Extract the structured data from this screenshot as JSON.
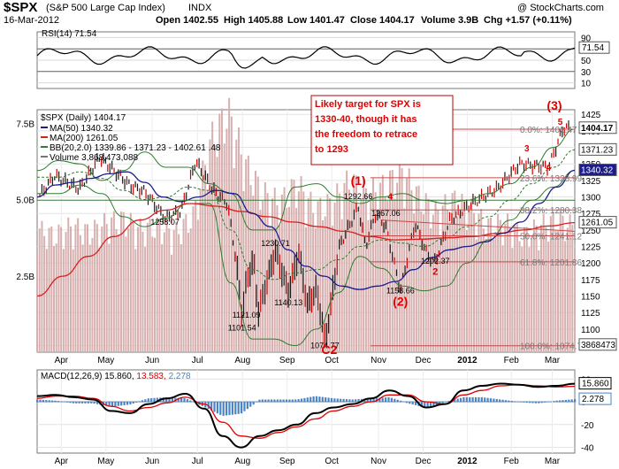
{
  "header": {
    "symbol": "$SPX",
    "name": "(S&P 500 Large Cap Index)",
    "exchange": "INDX",
    "watermark": "@ StockCharts.com",
    "date": "16-Mar-2012",
    "open": "Open 1402.55",
    "high": "High 1405.88",
    "low": "Low 1401.47",
    "close": "Close 1404.17",
    "volume": "Volume 3.9B",
    "change": "Chg +1.57 (+0.11%)"
  },
  "colors": {
    "price_bar_up": "#1a1a1a",
    "price_bar_down": "#d00000",
    "ma50": "#1c1c8c",
    "ma200": "#d42020",
    "bollinger": "#2f7d2f",
    "volume_bar": "#d8b0b0",
    "macd": "#000000",
    "signal": "#e00000",
    "histogram": "#4a84c4",
    "annotation_red": "#e00000",
    "fib_line": "#c84a4a"
  },
  "chart_data": [
    {
      "type": "line",
      "panel": "RSI",
      "title": "RSI(14) 71.54",
      "y_ticks": [
        10,
        30,
        50,
        70,
        90
      ],
      "ylim": [
        0,
        100
      ],
      "overbought": 70,
      "oversold": 30,
      "last_value_label": "71.54",
      "series": [
        {
          "name": "RSI(14)",
          "x": [
            "2012-03-16"
          ],
          "values": [
            71.54
          ]
        }
      ]
    },
    {
      "type": "line",
      "panel": "price",
      "title": "$SPX (Daily) 1404.17",
      "legend": [
        "MA(50) 1340.32",
        "MA(200) 1261.05",
        "BB(20,2.0) 1339.86 - 1371.23 - 1402.61 .48",
        "Volume 3,868,473,088"
      ],
      "x_ticks": [
        "Apr",
        "May",
        "Jun",
        "Jul",
        "Aug",
        "Sep",
        "Oct",
        "Nov",
        "Dec",
        "2012",
        "Feb",
        "Mar"
      ],
      "y_ticks": [
        1075,
        1100,
        1125,
        1150,
        1175,
        1200,
        1225,
        1250,
        1275,
        1300,
        1325,
        1350,
        1375,
        1400,
        1425
      ],
      "ylim": [
        1065,
        1432
      ],
      "volume_ticks": [
        "7.5B",
        "5.0B",
        "2.5B"
      ],
      "series": [
        {
          "name": "Price",
          "x": [
            "2011-03-21",
            "2011-04-01",
            "2011-04-18",
            "2011-05-02",
            "2011-05-23",
            "2011-06-02",
            "2011-06-16",
            "2011-06-27",
            "2011-07-07",
            "2011-07-19",
            "2011-07-29",
            "2011-08-04",
            "2011-08-08",
            "2011-08-11",
            "2011-08-16",
            "2011-08-19",
            "2011-08-31",
            "2011-09-09",
            "2011-09-16",
            "2011-09-22",
            "2011-09-28",
            "2011-10-03",
            "2011-10-04",
            "2011-10-14",
            "2011-10-27",
            "2011-11-01",
            "2011-11-08",
            "2011-11-15",
            "2011-11-25",
            "2011-12-05",
            "2011-12-14",
            "2011-12-19",
            "2011-12-29",
            "2012-01-13",
            "2012-01-31",
            "2012-02-15",
            "2012-03-06",
            "2012-03-16"
          ],
          "values": [
            1300,
            1332,
            1312,
            1360,
            1317,
            1308,
            1268,
            1278,
            1354,
            1310,
            1290,
            1203,
            1119,
            1172,
            1205,
            1124,
            1218,
            1155,
            1216,
            1136,
            1160,
            1102,
            1075,
            1225,
            1285,
            1225,
            1275,
            1255,
            1158,
            1260,
            1210,
            1202,
            1265,
            1290,
            1313,
            1350,
            1345,
            1404.17
          ]
        },
        {
          "name": "MA(50)",
          "values": [
            1300,
            1318,
            1322,
            1328,
            1335,
            1338,
            1322,
            1300,
            1293,
            1300,
            1310,
            1305,
            1275,
            1255,
            1220,
            1195,
            1180,
            1165,
            1160,
            1165,
            1172,
            1190,
            1208,
            1220,
            1225,
            1232,
            1245,
            1262,
            1290,
            1315,
            1340.32
          ]
        },
        {
          "name": "MA(200)",
          "values": [
            1150,
            1180,
            1210,
            1240,
            1265,
            1280,
            1290,
            1286,
            1278,
            1270,
            1262,
            1255,
            1248,
            1240,
            1235,
            1236,
            1238,
            1240,
            1245,
            1250,
            1256,
            1261.05
          ]
        },
        {
          "name": "BB upper",
          "values": [
            1340,
            1355,
            1350,
            1325,
            1340,
            1368,
            1345,
            1345,
            1320,
            1305,
            1250,
            1250,
            1315,
            1320,
            1300,
            1290,
            1300,
            1305,
            1295,
            1290,
            1295,
            1305,
            1320,
            1345,
            1375,
            1402.61
          ]
        },
        {
          "name": "BB middle",
          "values": [
            1330,
            1330,
            1338,
            1328,
            1310,
            1296,
            1300,
            1315,
            1310,
            1250,
            1190,
            1175,
            1185,
            1190,
            1205,
            1225,
            1235,
            1230,
            1225,
            1238,
            1255,
            1270,
            1295,
            1320,
            1345,
            1371.23
          ]
        },
        {
          "name": "BB lower",
          "values": [
            1305,
            1305,
            1318,
            1305,
            1270,
            1255,
            1268,
            1290,
            1290,
            1170,
            1085,
            1085,
            1075,
            1100,
            1155,
            1210,
            1192,
            1165,
            1158,
            1165,
            1200,
            1235,
            1265,
            1295,
            1315,
            1339.86
          ]
        },
        {
          "name": "Volume",
          "values_billions": [
            3.8,
            3.6,
            3.9,
            3.7,
            4.0,
            4.1,
            3.8,
            3.9,
            3.7,
            4.2,
            6.5,
            7.4,
            5.8,
            4.9,
            4.6,
            5.2,
            4.4,
            4.6,
            5.3,
            4.9,
            5.1,
            5.6,
            4.8,
            4.3,
            4.7,
            4.4,
            3.9,
            4.0,
            3.6,
            3.9,
            4.1,
            3.868
          ]
        }
      ],
      "value_labels": [
        "1292.66",
        "1258.07",
        "1230.71",
        "1121.09",
        "1140.13",
        "1101.54",
        "1074.77",
        "1267.06",
        "1202.37",
        "1158.66"
      ],
      "axis_labels": [
        "1404.17",
        "1371.23",
        "1340.32",
        "1261.05",
        "3868473"
      ],
      "fib_levels": [
        {
          "label": "0.0%: 1402.47",
          "value": 1402.47
        },
        {
          "label": "23.6%: 1328.99",
          "value": 1328.99
        },
        {
          "label": "38.2%: 1280.38",
          "value": 1280.38
        },
        {
          "label": "50.0%: 1241.12",
          "value": 1241.12
        },
        {
          "label": "61.8%: 1201.86",
          "value": 1201.86
        },
        {
          "label": "100.0%: 1074.77",
          "value": 1074.77
        }
      ],
      "wave_labels": [
        "(1)",
        "(2)",
        "(3)",
        "C2",
        "2",
        "4",
        "3",
        "4",
        "5"
      ],
      "note": "Likely target for SPX is 1330-40, though it has the freedom to retrace to 1293"
    },
    {
      "type": "line",
      "panel": "MACD",
      "title": "MACD(12,26,9) 15.860, 13.583, 2.278",
      "title_parts": [
        "MACD(12,26,9)",
        "15.860",
        "13.583",
        "2.278"
      ],
      "y_ticks": [
        -40,
        -20,
        0,
        20
      ],
      "ylim": [
        -45,
        28
      ],
      "last_value_labels": [
        "15.860",
        "2.278"
      ],
      "x_ticks": [
        "Apr",
        "May",
        "Jun",
        "Jul",
        "Aug",
        "Sep",
        "Oct",
        "Nov",
        "Dec",
        "2012",
        "Feb",
        "Mar"
      ],
      "series": [
        {
          "name": "MACD",
          "values": [
            5,
            6,
            4,
            2,
            -8,
            -10,
            -2,
            3,
            7,
            -6,
            -30,
            -40,
            -30,
            -25,
            -20,
            -10,
            -5,
            -2,
            3,
            10,
            5,
            -5,
            -2,
            10,
            14,
            16,
            15,
            13,
            14,
            15.86
          ]
        },
        {
          "name": "Signal",
          "values": [
            3,
            5,
            5,
            3,
            -4,
            -8,
            -5,
            -1,
            4,
            -2,
            -18,
            -30,
            -32,
            -27,
            -22,
            -15,
            -8,
            -4,
            0,
            6,
            6,
            0,
            -2,
            6,
            10,
            14,
            15,
            14,
            13,
            13.583
          ]
        },
        {
          "name": "Histogram",
          "values": [
            2,
            1,
            -1,
            -1,
            -4,
            -2,
            3,
            4,
            3,
            -4,
            -12,
            -10,
            2,
            2,
            2,
            5,
            3,
            2,
            3,
            4,
            -1,
            -5,
            0,
            4,
            4,
            2,
            0,
            -1,
            1,
            2.278
          ]
        }
      ]
    }
  ]
}
